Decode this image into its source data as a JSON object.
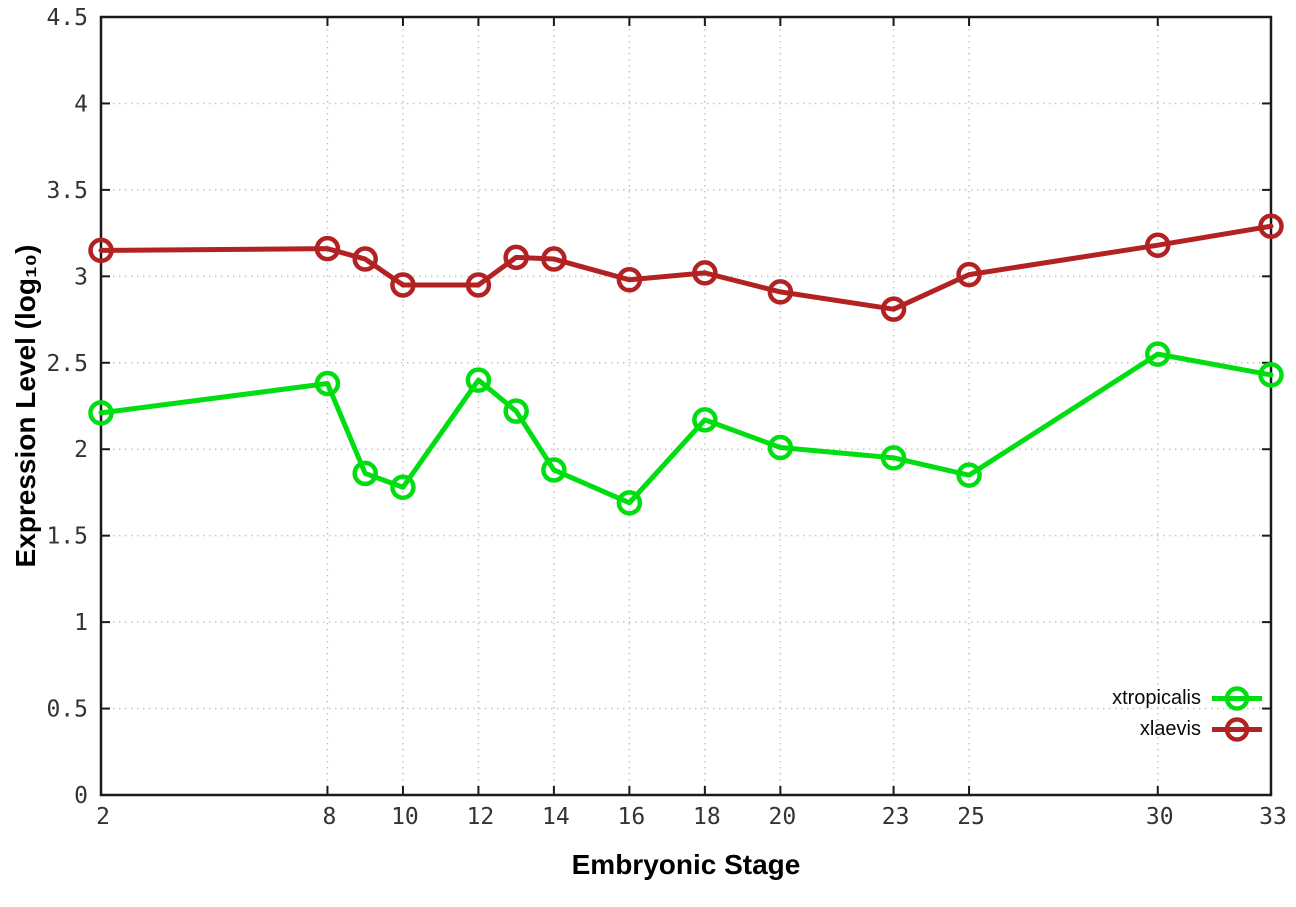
{
  "chart_data": {
    "type": "line",
    "title": "",
    "xlabel": "Embryonic Stage",
    "ylabel": "Expression Level (log₁₀)",
    "xlim": [
      2,
      33
    ],
    "ylim": [
      0,
      4.5
    ],
    "grid": true,
    "legend_position": "bottom-right-inside",
    "marker": "open-circle",
    "x_ticks": [
      {
        "value": 2,
        "label": "2"
      },
      {
        "value": 8,
        "label": "8"
      },
      {
        "value": 10,
        "label": "10"
      },
      {
        "value": 12,
        "label": "12"
      },
      {
        "value": 14,
        "label": "14"
      },
      {
        "value": 16,
        "label": "16"
      },
      {
        "value": 18,
        "label": "18"
      },
      {
        "value": 20,
        "label": "20"
      },
      {
        "value": 23,
        "label": "23"
      },
      {
        "value": 25,
        "label": "25"
      },
      {
        "value": 30,
        "label": "30"
      },
      {
        "value": 33,
        "label": "33"
      }
    ],
    "y_ticks": [
      {
        "value": 0,
        "label": "0"
      },
      {
        "value": 0.5,
        "label": "0.5"
      },
      {
        "value": 1,
        "label": "1"
      },
      {
        "value": 1.5,
        "label": "1.5"
      },
      {
        "value": 2,
        "label": "2"
      },
      {
        "value": 2.5,
        "label": "2.5"
      },
      {
        "value": 3,
        "label": "3"
      },
      {
        "value": 3.5,
        "label": "3.5"
      },
      {
        "value": 4,
        "label": "4"
      },
      {
        "value": 4.5,
        "label": "4.5"
      }
    ],
    "x": [
      2,
      8,
      9,
      10,
      12,
      13,
      14,
      16,
      18,
      20,
      23,
      25,
      30,
      33
    ],
    "series": [
      {
        "name": "xtropicalis",
        "color": "#00dd11",
        "values": [
          2.21,
          2.38,
          1.86,
          1.78,
          2.4,
          2.22,
          1.88,
          1.69,
          2.17,
          2.01,
          1.95,
          1.85,
          2.55,
          2.43
        ]
      },
      {
        "name": "xlaevis",
        "color": "#b22222",
        "values": [
          3.15,
          3.16,
          3.1,
          2.95,
          2.95,
          3.11,
          3.1,
          2.98,
          3.02,
          2.91,
          2.81,
          3.01,
          3.18,
          3.29
        ]
      }
    ],
    "colors": {
      "background": "#ffffff",
      "grid": "#c4c4c4",
      "axis": "#1a1a1a",
      "tick_label": "#333333"
    }
  }
}
